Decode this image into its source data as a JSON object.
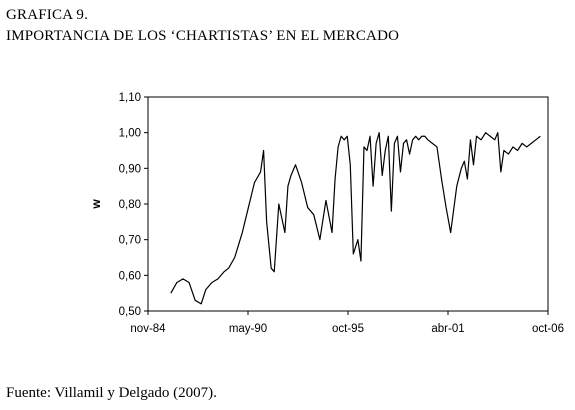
{
  "figure": {
    "label": "GRAFICA 9.",
    "title": "IMPORTANCIA DE LOS ‘CHARTISTAS’ EN EL MERCADO",
    "source": "Fuente: Villamil y Delgado (2007)."
  },
  "chart_data": {
    "type": "line",
    "title": "",
    "xlabel": "",
    "ylabel": "w",
    "x_ticks": [
      "nov-84",
      "may-90",
      "oct-95",
      "abr-01",
      "oct-06"
    ],
    "y_ticks": [
      "0,50",
      "0,60",
      "0,70",
      "0,80",
      "0,90",
      "1,00",
      "1,10"
    ],
    "ylim": [
      0.5,
      1.1
    ],
    "xlim": [
      "1984-11",
      "2006-10"
    ],
    "grid": false,
    "legend": "none",
    "color": "#000000",
    "series": [
      {
        "x": [
          "1986-02",
          "1986-06",
          "1986-10",
          "1987-02",
          "1987-06",
          "1987-10",
          "1988-01",
          "1988-05",
          "1988-09",
          "1989-01",
          "1989-04",
          "1989-08",
          "1990-01",
          "1990-05",
          "1990-09",
          "1991-01",
          "1991-03",
          "1991-05",
          "1991-08",
          "1991-10",
          "1992-01",
          "1992-05",
          "1992-07",
          "1992-09",
          "1992-12",
          "1993-04",
          "1993-08",
          "1993-12",
          "1994-04",
          "1994-08",
          "1994-12",
          "1995-02",
          "1995-04",
          "1995-06",
          "1995-08",
          "1995-10",
          "1995-12",
          "1996-02",
          "1996-05",
          "1996-07",
          "1996-09",
          "1996-11",
          "1997-01",
          "1997-03",
          "1997-05",
          "1997-07",
          "1997-09",
          "1997-11",
          "1998-01",
          "1998-03",
          "1998-05",
          "1998-07",
          "1998-09",
          "1998-11",
          "1999-01",
          "1999-03",
          "1999-05",
          "1999-07",
          "1999-09",
          "1999-11",
          "2000-01",
          "2000-03",
          "2000-06",
          "2000-09",
          "2000-12",
          "2001-03",
          "2001-06",
          "2001-10",
          "2002-01",
          "2002-03",
          "2002-05",
          "2002-07",
          "2002-09",
          "2002-11",
          "2003-02",
          "2003-05",
          "2003-08",
          "2003-11",
          "2004-01",
          "2004-03",
          "2004-05",
          "2004-08",
          "2004-11",
          "2005-02",
          "2005-05",
          "2005-08",
          "2005-11",
          "2006-02",
          "2006-05"
        ],
        "values": [
          0.55,
          0.58,
          0.59,
          0.58,
          0.53,
          0.52,
          0.56,
          0.58,
          0.59,
          0.61,
          0.62,
          0.65,
          0.72,
          0.79,
          0.86,
          0.89,
          0.95,
          0.75,
          0.62,
          0.61,
          0.8,
          0.72,
          0.85,
          0.88,
          0.91,
          0.86,
          0.79,
          0.77,
          0.7,
          0.81,
          0.72,
          0.87,
          0.96,
          0.99,
          0.98,
          0.99,
          0.91,
          0.66,
          0.7,
          0.64,
          0.96,
          0.95,
          0.99,
          0.85,
          0.97,
          1.0,
          0.88,
          0.95,
          0.99,
          0.78,
          0.97,
          0.99,
          0.89,
          0.97,
          0.98,
          0.94,
          0.98,
          0.99,
          0.98,
          0.99,
          0.99,
          0.98,
          0.97,
          0.96,
          0.87,
          0.79,
          0.72,
          0.85,
          0.9,
          0.92,
          0.87,
          0.98,
          0.91,
          0.99,
          0.98,
          1.0,
          0.99,
          0.98,
          1.0,
          0.89,
          0.95,
          0.94,
          0.96,
          0.95,
          0.97,
          0.96,
          0.97,
          0.98,
          0.99
        ]
      }
    ]
  }
}
